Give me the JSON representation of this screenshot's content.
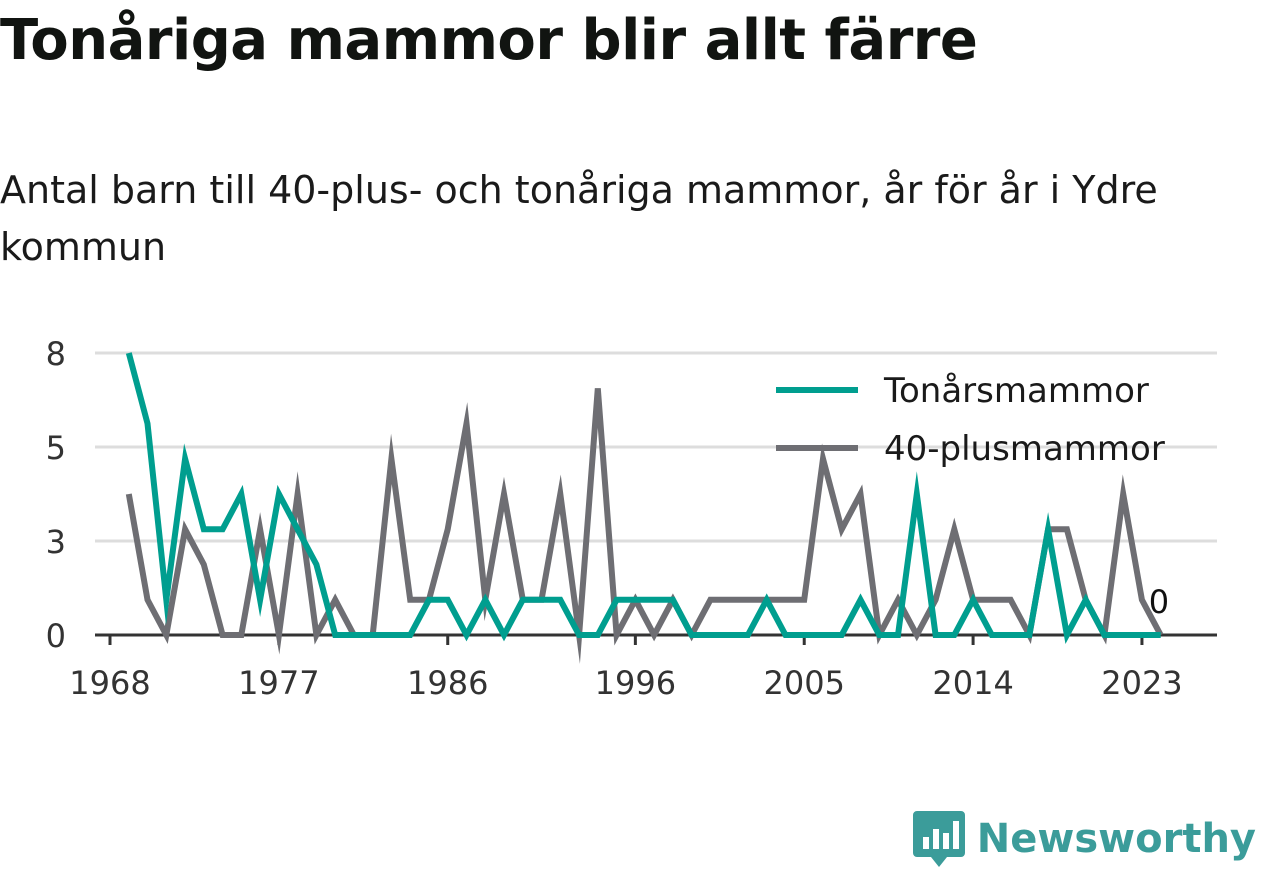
{
  "title": "Tonåriga mammor blir allt färre",
  "subtitle": "Antal barn till 40-plus- och tonåriga mammor, år för år i Ydre kommun",
  "brand": {
    "name": "Newsworthy",
    "icon": "newsworthy-logo-icon",
    "color": "#3b9c9a"
  },
  "chart_data": {
    "type": "line",
    "title": "Tonåriga mammor blir allt färre",
    "xlabel": "",
    "ylabel": "",
    "x": [
      1969,
      1970,
      1971,
      1972,
      1973,
      1974,
      1975,
      1976,
      1977,
      1978,
      1979,
      1980,
      1981,
      1982,
      1983,
      1984,
      1985,
      1986,
      1987,
      1988,
      1989,
      1990,
      1991,
      1992,
      1993,
      1994,
      1995,
      1996,
      1997,
      1998,
      1999,
      2000,
      2001,
      2002,
      2003,
      2004,
      2005,
      2006,
      2007,
      2008,
      2009,
      2010,
      2011,
      2012,
      2013,
      2014,
      2015,
      2016,
      2017,
      2018,
      2019,
      2020,
      2021,
      2022,
      2023,
      2024
    ],
    "series": [
      {
        "name": "Tonårsmammor",
        "color": "#009e8f",
        "values": [
          8,
          6,
          1,
          5,
          3,
          3,
          4,
          1,
          4,
          3,
          2,
          0,
          0,
          0,
          0,
          0,
          1,
          1,
          0,
          1,
          0,
          1,
          1,
          1,
          0,
          0,
          1,
          1,
          1,
          1,
          0,
          0,
          0,
          0,
          1,
          0,
          0,
          0,
          0,
          1,
          0,
          0,
          4,
          0,
          0,
          1,
          0,
          0,
          0,
          3,
          0,
          1,
          0,
          0,
          0,
          0
        ]
      },
      {
        "name": "40-plusmammor",
        "color": "#6e6e73",
        "values": [
          4,
          1,
          0,
          3,
          2,
          0,
          0,
          3,
          0,
          4,
          0,
          1,
          0,
          0,
          5,
          1,
          1,
          3,
          6,
          1,
          4,
          1,
          1,
          4,
          0,
          7,
          0,
          1,
          0,
          1,
          0,
          1,
          1,
          1,
          1,
          1,
          1,
          5,
          3,
          4,
          0,
          1,
          0,
          1,
          3,
          1,
          1,
          1,
          0,
          3,
          3,
          1,
          0,
          4,
          1,
          0
        ]
      }
    ],
    "yticks": [
      "0",
      "3",
      "5",
      "8"
    ],
    "ytick_values": [
      0,
      2.667,
      5.333,
      8
    ],
    "xticks": [
      1968,
      1977,
      1986,
      1996,
      2005,
      2014,
      2023
    ],
    "xtick_labels": [
      "1968",
      "1977",
      "1986",
      "1996",
      "2005",
      "2014",
      "2023"
    ],
    "ylim": [
      0,
      8
    ],
    "xlim": [
      1967.2,
      2027
    ],
    "grid": true,
    "legend_position": "top-right",
    "end_label": "0",
    "axis_color": "#333333",
    "grid_color": "#dddddd"
  }
}
